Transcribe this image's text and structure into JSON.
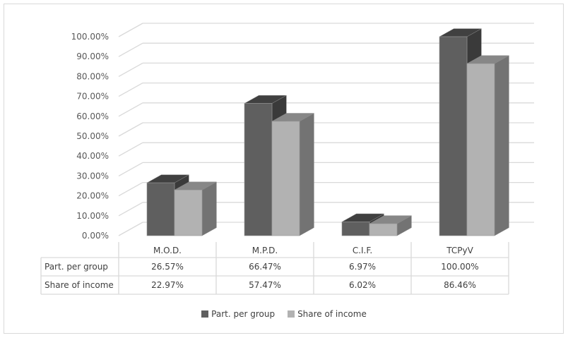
{
  "chart_data": {
    "type": "bar",
    "style": "3d-clustered-column-with-data-table",
    "title": "",
    "xlabel": "",
    "ylabel": "",
    "ylim": [
      0,
      100
    ],
    "y_ticks": [
      "0.00%",
      "10.00%",
      "20.00%",
      "30.00%",
      "40.00%",
      "50.00%",
      "60.00%",
      "70.00%",
      "80.00%",
      "90.00%",
      "100.00%"
    ],
    "categories": [
      "M.O.D.",
      "M.P.D.",
      "C.I.F.",
      "TCPyV"
    ],
    "series": [
      {
        "name": "Part. per group",
        "values": [
          26.57,
          66.47,
          6.97,
          100.0
        ],
        "labels": [
          "26.57%",
          "66.47%",
          "6.97%",
          "100.00%"
        ],
        "color": "#5f5f5f"
      },
      {
        "name": "Share of income",
        "values": [
          22.97,
          57.47,
          6.02,
          86.46
        ],
        "labels": [
          "22.97%",
          "57.47%",
          "6.02%",
          "86.46%"
        ],
        "color": "#b2b2b2"
      }
    ],
    "grid": true,
    "legend_position": "bottom",
    "data_table": true
  }
}
